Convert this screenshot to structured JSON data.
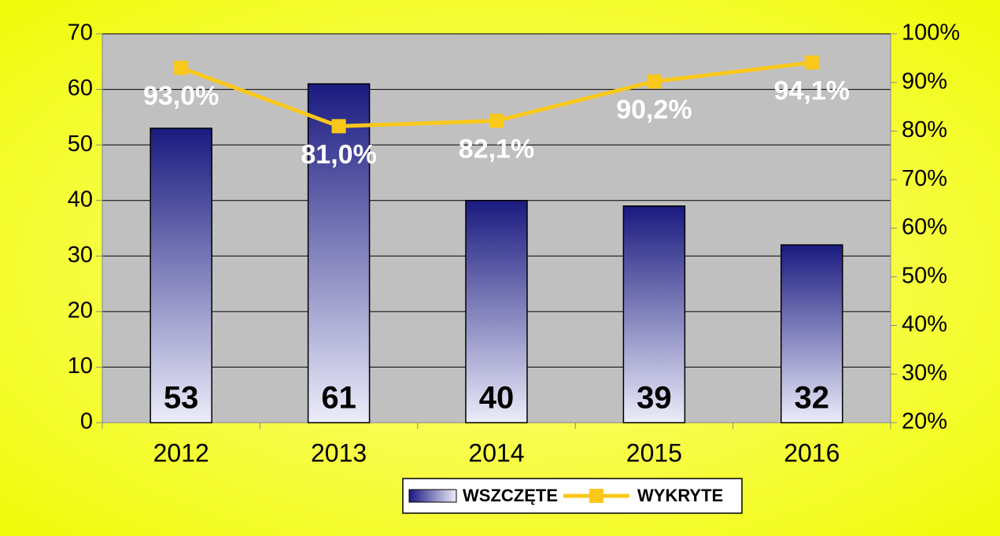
{
  "chart_data": {
    "type": "bar",
    "categories": [
      "2012",
      "2013",
      "2014",
      "2015",
      "2016"
    ],
    "series": [
      {
        "name": "WSZCZĘTE",
        "type": "bar",
        "color": "#1a1a80",
        "values": [
          53,
          61,
          40,
          39,
          32
        ]
      },
      {
        "name": "WYKRYTE",
        "type": "line",
        "axis": "y2",
        "color": "#f9c81b",
        "values": [
          93.0,
          81.0,
          82.1,
          90.2,
          94.1
        ],
        "value_labels": [
          "93,0%",
          "81,0%",
          "82,1%",
          "90,2%",
          "94,1%"
        ]
      }
    ],
    "ylim": [
      0,
      70
    ],
    "yticks": [
      0,
      10,
      20,
      30,
      40,
      50,
      60,
      70
    ],
    "y2lim": [
      20,
      100
    ],
    "y2ticks": [
      {
        "value": 20,
        "label": "20%"
      },
      {
        "value": 30,
        "label": "30%"
      },
      {
        "value": 40,
        "label": "40%"
      },
      {
        "value": 50,
        "label": "50%"
      },
      {
        "value": 60,
        "label": "60%"
      },
      {
        "value": 70,
        "label": "70%"
      },
      {
        "value": 80,
        "label": "80%"
      },
      {
        "value": 90,
        "label": "90%"
      },
      {
        "value": 100,
        "label": "100%"
      }
    ],
    "grid": true,
    "legend": "bottom"
  }
}
